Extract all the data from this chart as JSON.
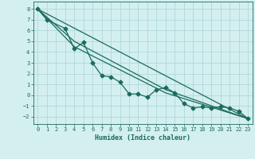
{
  "xlabel": "Humidex (Indice chaleur)",
  "background_color": "#d4efef",
  "grid_color": "#b0d8d8",
  "line_color": "#1a6b5a",
  "xlim": [
    -0.5,
    23.5
  ],
  "ylim": [
    -2.7,
    8.7
  ],
  "yticks": [
    -2,
    -1,
    0,
    1,
    2,
    3,
    4,
    5,
    6,
    7,
    8
  ],
  "xticks": [
    0,
    1,
    2,
    3,
    4,
    5,
    6,
    7,
    8,
    9,
    10,
    11,
    12,
    13,
    14,
    15,
    16,
    17,
    18,
    19,
    20,
    21,
    22,
    23
  ],
  "line1_x": [
    0,
    1,
    3,
    4,
    5,
    6,
    7,
    8,
    9,
    10,
    11,
    12,
    13,
    14,
    15,
    16,
    17,
    18,
    19,
    20,
    21,
    22,
    23
  ],
  "line1_y": [
    8.0,
    7.0,
    6.2,
    4.3,
    4.9,
    3.0,
    1.8,
    1.7,
    1.2,
    0.1,
    0.1,
    -0.2,
    0.5,
    0.7,
    0.2,
    -0.8,
    -1.2,
    -1.1,
    -1.2,
    -1.1,
    -1.2,
    -1.5,
    -2.2
  ],
  "line2_x": [
    0,
    23
  ],
  "line2_y": [
    8.0,
    -2.2
  ],
  "line3_x": [
    0,
    4,
    14,
    23
  ],
  "line3_y": [
    8.0,
    5.0,
    0.5,
    -2.2
  ],
  "line4_x": [
    0,
    4,
    14,
    23
  ],
  "line4_y": [
    8.0,
    4.5,
    0.2,
    -2.2
  ]
}
